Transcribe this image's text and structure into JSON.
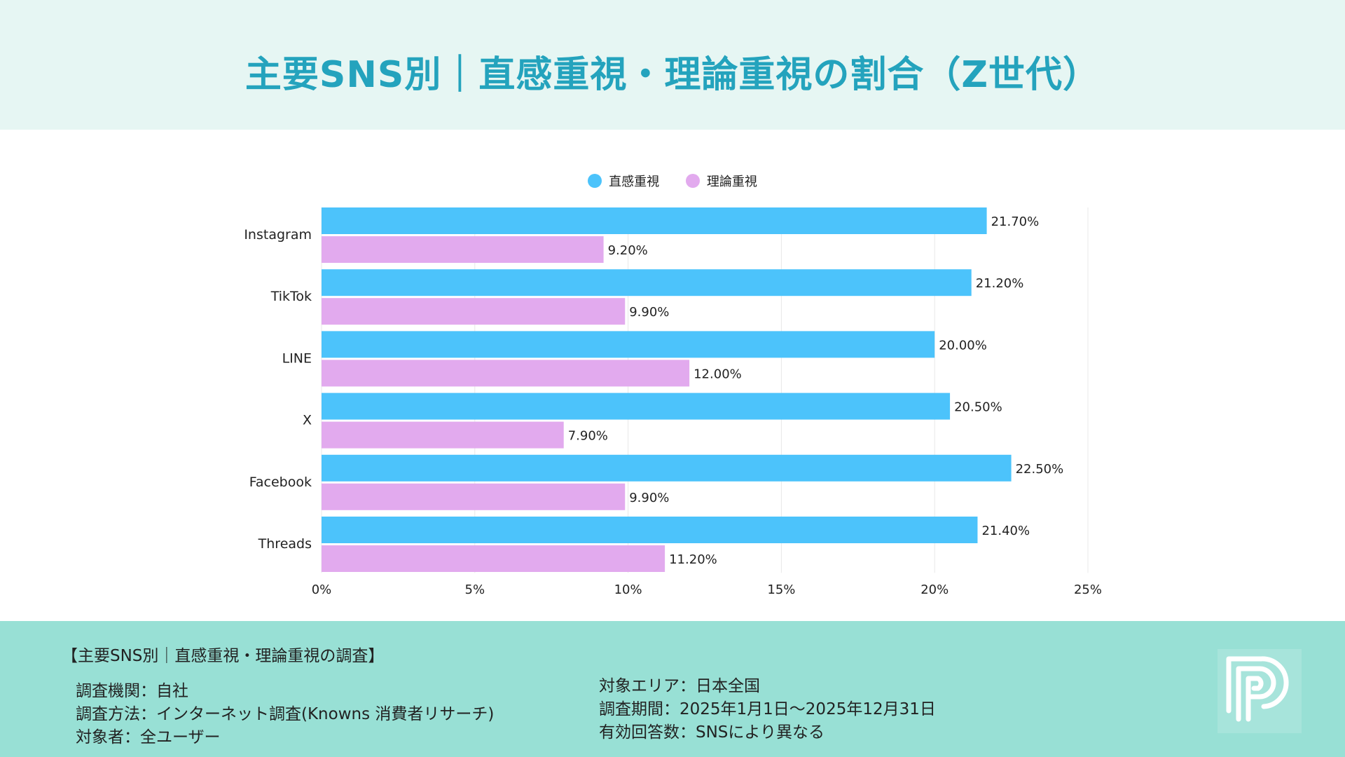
{
  "header": {
    "title": "主要SNS別｜直感重視・理論重視の割合（Z世代）"
  },
  "colors": {
    "intuition": "#4cc3fb",
    "logic": "#e2aaee",
    "header_bg": "#e6f6f3",
    "footer_bg": "#98e0d5",
    "title": "#24a3bd"
  },
  "chart_data": {
    "type": "bar",
    "orientation": "horizontal",
    "title": "主要SNS別｜直感重視・理論重視の割合（Z世代）",
    "categories": [
      "Instagram",
      "TikTok",
      "LINE",
      "X",
      "Facebook",
      "Threads"
    ],
    "series": [
      {
        "name": "直感重視",
        "color": "#4cc3fb",
        "values": [
          21.7,
          21.2,
          20.0,
          20.5,
          22.5,
          21.4
        ],
        "labels": [
          "21.70%",
          "21.20%",
          "20.00%",
          "20.50%",
          "22.50%",
          "21.40%"
        ]
      },
      {
        "name": "理論重視",
        "color": "#e2aaee",
        "values": [
          9.2,
          9.9,
          12.0,
          7.9,
          9.9,
          11.2
        ],
        "labels": [
          "9.20%",
          "9.90%",
          "12.00%",
          "7.90%",
          "9.90%",
          "11.20%"
        ]
      }
    ],
    "xlim": [
      0,
      25
    ],
    "xticks": [
      0,
      5,
      10,
      15,
      20,
      25
    ],
    "xtick_labels": [
      "0%",
      "5%",
      "10%",
      "15%",
      "20%",
      "25%"
    ],
    "grid": true,
    "legend": "top-center"
  },
  "footer": {
    "heading": "【主要SNS別｜直感重視・理論重視の調査】",
    "left": [
      "調査機関：自社",
      "調査方法：インターネット調査(Knowns 消費者リサーチ)",
      "対象者：全ユーザー"
    ],
    "right": [
      "対象エリア：日本全国",
      "調査期間：2025年1月1日～2025年12月31日",
      "有効回答数：SNSにより異なる"
    ]
  }
}
